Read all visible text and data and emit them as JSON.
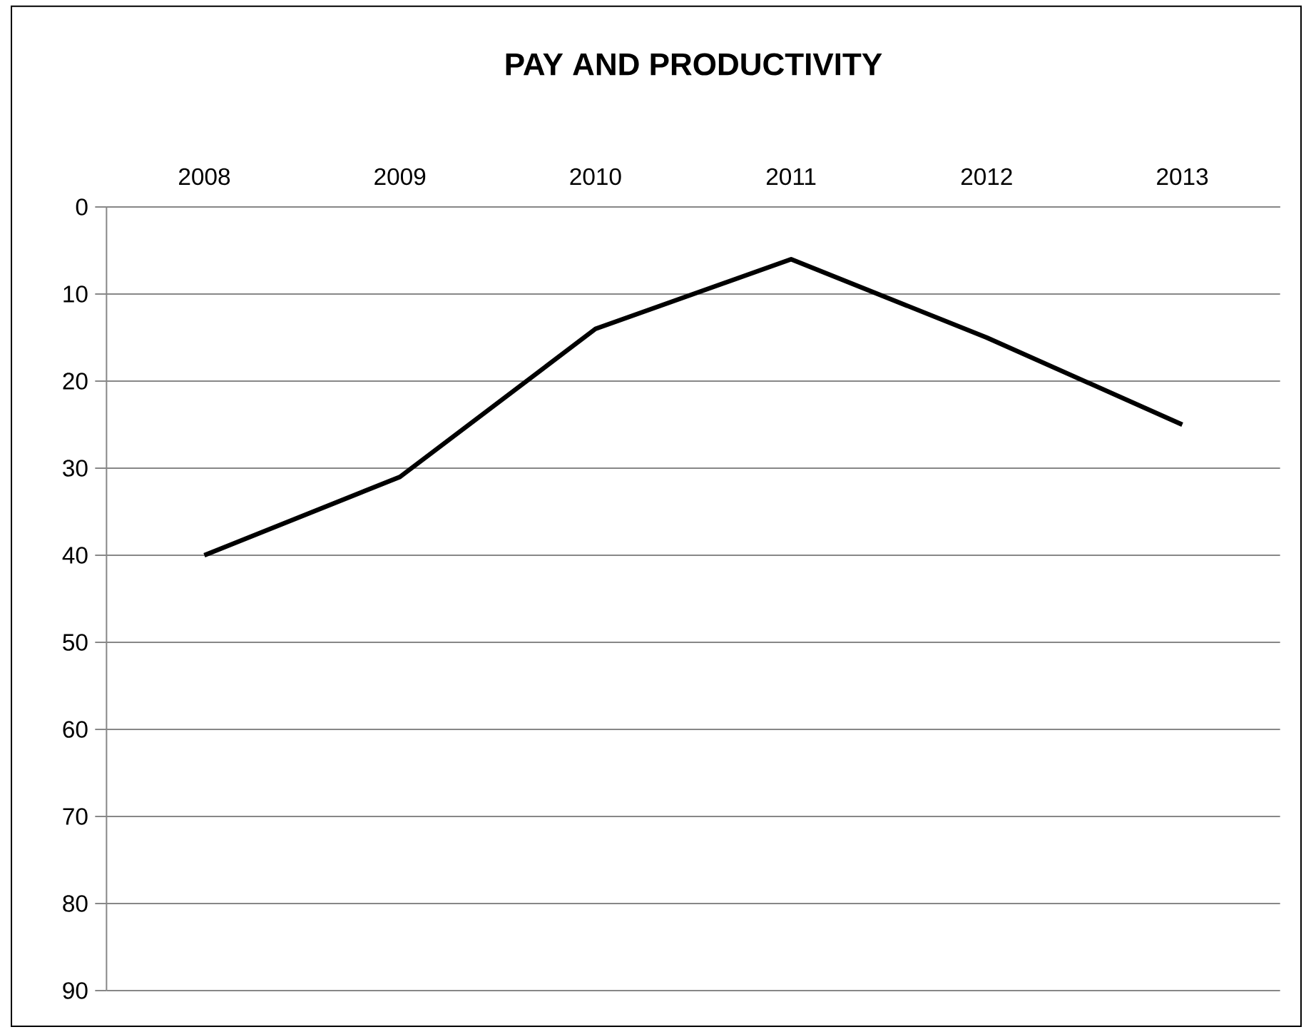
{
  "chart_data": {
    "type": "line",
    "title": "PAY AND PRODUCTIVITY",
    "categories": [
      "2008",
      "2009",
      "2010",
      "2011",
      "2012",
      "2013"
    ],
    "series": [
      {
        "color": "#000000",
        "values": [
          40,
          31,
          14,
          6,
          15,
          25
        ]
      }
    ],
    "ylim": [
      90,
      0
    ],
    "yticks": [
      0,
      10,
      20,
      30,
      40,
      50,
      60,
      70,
      80,
      90
    ],
    "grid": "y"
  }
}
